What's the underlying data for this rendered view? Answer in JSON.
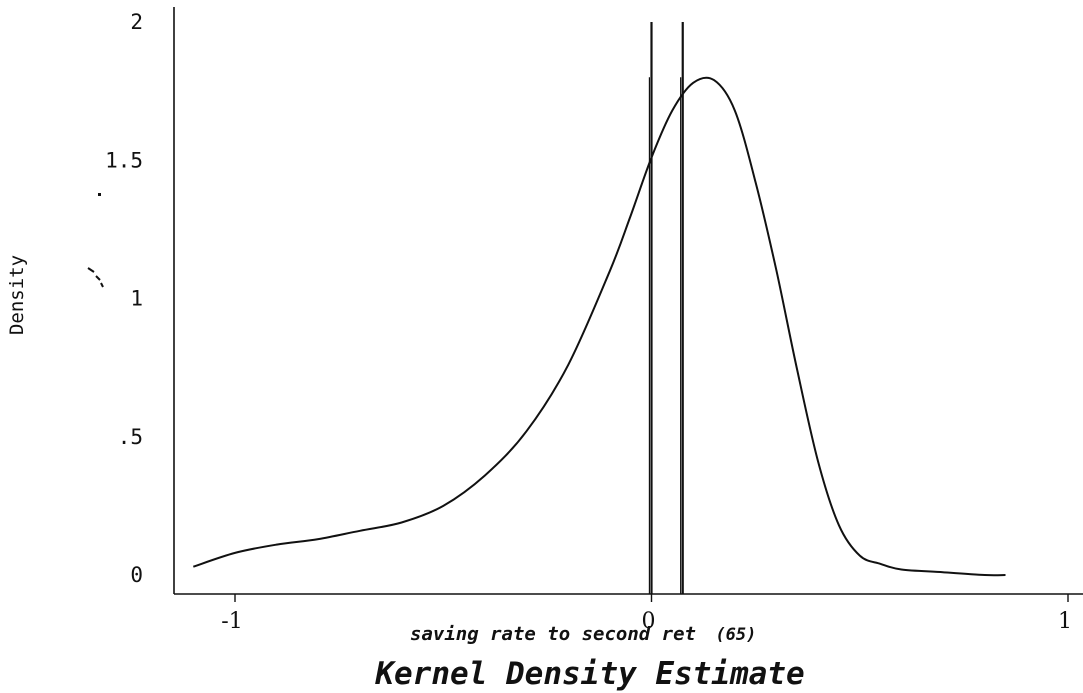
{
  "chart_data": {
    "type": "line",
    "title": "Kernel Density Estimate",
    "xlabel": "saving rate to second ret",
    "xlabel_suffix": "(65)",
    "ylabel": "Density",
    "xlim": [
      -1.03,
      1.03
    ],
    "ylim": [
      0,
      2
    ],
    "x_ticks": [
      {
        "value": -1,
        "label": "-1"
      },
      {
        "value": 0,
        "label": "0"
      },
      {
        "value": 1,
        "label": "1"
      }
    ],
    "y_ticks": [
      {
        "value": 0,
        "label": "0"
      },
      {
        "value": 0.5,
        "label": ".5"
      },
      {
        "value": 1,
        "label": "1"
      },
      {
        "value": 1.5,
        "label": "1.5"
      },
      {
        "value": 2,
        "label": "2"
      }
    ],
    "grid": false,
    "legend": "none",
    "series": [
      {
        "x": [
          -1.1,
          -1.0,
          -0.9,
          -0.8,
          -0.7,
          -0.6,
          -0.5,
          -0.4,
          -0.3,
          -0.2,
          -0.1,
          -0.05,
          0,
          0.05,
          0.1,
          0.15,
          0.2,
          0.25,
          0.3,
          0.35,
          0.4,
          0.45,
          0.5,
          0.55,
          0.6,
          0.7,
          0.8,
          0.85
        ],
        "y": [
          0.03,
          0.08,
          0.11,
          0.13,
          0.16,
          0.19,
          0.25,
          0.36,
          0.52,
          0.76,
          1.1,
          1.3,
          1.51,
          1.68,
          1.78,
          1.79,
          1.68,
          1.42,
          1.1,
          0.74,
          0.41,
          0.18,
          0.07,
          0.04,
          0.02,
          0.01,
          0.0,
          0.0
        ]
      }
    ],
    "reference_lines": [
      {
        "x": 0.0,
        "top": 2.0
      },
      {
        "x": 0.075,
        "top": 2.0
      }
    ],
    "reference_lines_short": [
      {
        "x": -0.005,
        "top": 1.8
      },
      {
        "x": 0.07,
        "top": 1.8
      }
    ],
    "line_color": "#111111"
  }
}
